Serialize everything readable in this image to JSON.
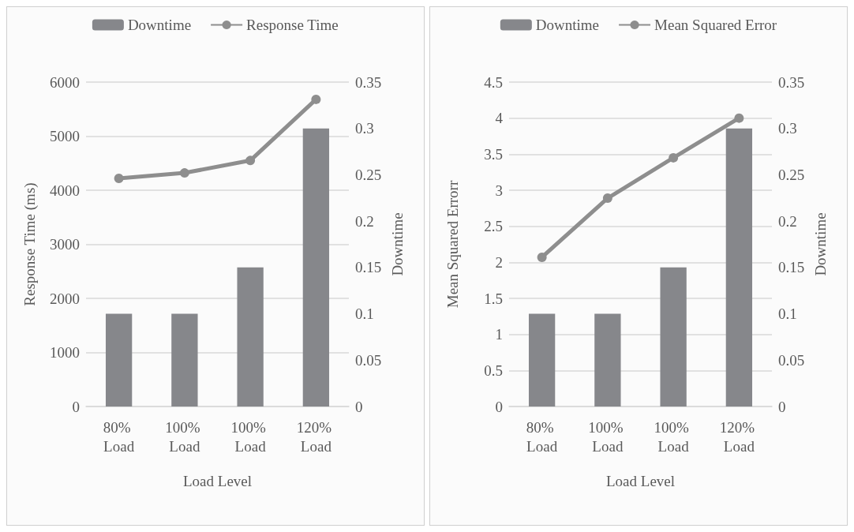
{
  "chart_data": [
    {
      "type": "bar",
      "xlabel": "Load Level",
      "ylabel": "Response Time (ms)",
      "y2label": "Downtime",
      "categories": [
        "80% Load",
        "100% Load",
        "100% Load",
        "120% Load"
      ],
      "series": [
        {
          "name": "Downtime",
          "axis": "y2",
          "color": "#86878b",
          "values": [
            0.1,
            0.1,
            0.15,
            0.3
          ]
        },
        {
          "name": "Response Time",
          "type": "line",
          "color": "#8e8e8e",
          "values": [
            4220,
            4320,
            4550,
            5680
          ]
        }
      ],
      "ylim": [
        0,
        6000
      ],
      "yticks": [
        0,
        1000,
        2000,
        3000,
        4000,
        5000,
        6000
      ],
      "y2lim": [
        0,
        0.35
      ],
      "y2ticks": [
        0,
        0.05,
        0.1,
        0.15,
        0.2,
        0.25,
        0.3,
        0.35
      ],
      "grid": "y",
      "legend": "top",
      "marker": "circle"
    },
    {
      "type": "bar",
      "xlabel": "Load Level",
      "ylabel": "Mean Squared Errorr",
      "y2label": "Downtime",
      "categories": [
        "80% Load",
        "100% Load",
        "100% Load",
        "120% Load"
      ],
      "series": [
        {
          "name": "Downtime",
          "axis": "y2",
          "color": "#86878b",
          "values": [
            0.1,
            0.1,
            0.15,
            0.3
          ]
        },
        {
          "name": "Mean Squared Error",
          "type": "line",
          "color": "#8e8e8e",
          "values": [
            2.07,
            2.89,
            3.45,
            4.0
          ]
        }
      ],
      "ylim": [
        0,
        4.5
      ],
      "yticks": [
        0,
        0.5,
        1,
        1.5,
        2,
        2.5,
        3,
        3.5,
        4,
        4.5
      ],
      "y2lim": [
        0,
        0.35
      ],
      "y2ticks": [
        0,
        0.05,
        0.1,
        0.15,
        0.2,
        0.25,
        0.3,
        0.35
      ],
      "grid": "y",
      "legend": "top",
      "marker": "circle"
    }
  ]
}
